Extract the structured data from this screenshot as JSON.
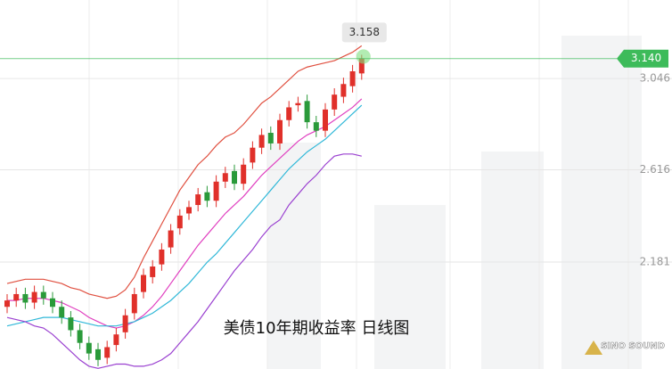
{
  "chart_data": {
    "type": "candlestick",
    "title": "美债10年期收益率  日线图",
    "logo": "SINO SOUND",
    "ylim": [
      1.677,
      3.416
    ],
    "yticks": [
      3.046,
      2.616,
      2.181
    ],
    "grid": true,
    "up_color": "#e0302a",
    "down_color": "#2a9a3a",
    "last_price": {
      "value": 3.14,
      "label": "3.140"
    },
    "last_price_color": "#3dbb5a",
    "open": [
      1.97,
      2.0,
      2.03,
      1.99,
      2.04,
      2.01,
      1.97,
      1.92,
      1.86,
      1.8,
      1.77,
      1.73,
      1.79,
      1.85,
      1.94,
      2.04,
      2.11,
      2.17,
      2.25,
      2.34,
      2.41,
      2.45,
      2.51,
      2.47,
      2.56,
      2.61,
      2.55,
      2.65,
      2.72,
      2.79,
      2.74,
      2.85,
      2.92,
      2.94,
      2.84,
      2.8,
      2.9,
      2.96,
      3.01,
      3.07
    ],
    "high": [
      2.03,
      2.06,
      2.06,
      2.07,
      2.07,
      2.04,
      2.0,
      1.95,
      1.89,
      1.83,
      1.8,
      1.81,
      1.87,
      1.96,
      2.06,
      2.15,
      2.19,
      2.27,
      2.36,
      2.43,
      2.47,
      2.53,
      2.54,
      2.59,
      2.63,
      2.64,
      2.67,
      2.75,
      2.81,
      2.82,
      2.88,
      2.94,
      2.96,
      2.97,
      2.87,
      2.93,
      3.0,
      3.05,
      3.11,
      3.158
    ],
    "low": [
      1.94,
      1.97,
      1.96,
      1.96,
      1.98,
      1.94,
      1.89,
      1.83,
      1.77,
      1.72,
      1.69,
      1.7,
      1.76,
      1.82,
      1.91,
      2.01,
      2.08,
      2.14,
      2.22,
      2.31,
      2.38,
      2.42,
      2.44,
      2.44,
      2.53,
      2.52,
      2.52,
      2.62,
      2.69,
      2.71,
      2.71,
      2.82,
      2.89,
      2.81,
      2.77,
      2.77,
      2.87,
      2.93,
      2.98,
      3.04
    ],
    "close": [
      2.0,
      2.03,
      1.99,
      2.04,
      2.01,
      1.97,
      1.92,
      1.86,
      1.8,
      1.75,
      1.72,
      1.78,
      1.84,
      1.93,
      2.03,
      2.12,
      2.16,
      2.24,
      2.33,
      2.4,
      2.44,
      2.5,
      2.47,
      2.56,
      2.6,
      2.55,
      2.64,
      2.72,
      2.78,
      2.74,
      2.85,
      2.91,
      2.93,
      2.84,
      2.8,
      2.9,
      2.97,
      3.02,
      3.08,
      3.14
    ],
    "lines": [
      {
        "color": "#e05040",
        "values": [
          2.08,
          2.09,
          2.1,
          2.1,
          2.1,
          2.09,
          2.08,
          2.06,
          2.05,
          2.03,
          2.02,
          2.01,
          2.02,
          2.05,
          2.11,
          2.2,
          2.28,
          2.36,
          2.44,
          2.52,
          2.58,
          2.64,
          2.68,
          2.73,
          2.77,
          2.79,
          2.83,
          2.88,
          2.93,
          2.96,
          3.0,
          3.04,
          3.08,
          3.1,
          3.11,
          3.12,
          3.13,
          3.15,
          3.17,
          3.2
        ]
      },
      {
        "color": "#e040c0",
        "values": [
          2.0,
          2.0,
          2.01,
          2.01,
          2.01,
          2.0,
          1.99,
          1.97,
          1.95,
          1.92,
          1.9,
          1.88,
          1.87,
          1.88,
          1.9,
          1.93,
          1.97,
          2.02,
          2.08,
          2.14,
          2.2,
          2.26,
          2.31,
          2.36,
          2.41,
          2.45,
          2.49,
          2.54,
          2.59,
          2.63,
          2.67,
          2.71,
          2.75,
          2.78,
          2.8,
          2.82,
          2.85,
          2.88,
          2.91,
          2.95
        ]
      },
      {
        "color": "#30b8d8",
        "values": [
          1.88,
          1.89,
          1.9,
          1.91,
          1.92,
          1.92,
          1.92,
          1.91,
          1.9,
          1.89,
          1.88,
          1.88,
          1.88,
          1.89,
          1.9,
          1.92,
          1.94,
          1.97,
          2.0,
          2.04,
          2.08,
          2.13,
          2.18,
          2.22,
          2.27,
          2.32,
          2.37,
          2.42,
          2.47,
          2.52,
          2.57,
          2.62,
          2.66,
          2.7,
          2.73,
          2.76,
          2.8,
          2.84,
          2.88,
          2.92
        ]
      },
      {
        "color": "#9a40d0",
        "values": [
          1.92,
          1.91,
          1.9,
          1.88,
          1.87,
          1.84,
          1.8,
          1.76,
          1.72,
          1.69,
          1.68,
          1.69,
          1.7,
          1.7,
          1.69,
          1.69,
          1.7,
          1.72,
          1.75,
          1.8,
          1.85,
          1.9,
          1.96,
          2.02,
          2.08,
          2.14,
          2.19,
          2.24,
          2.3,
          2.35,
          2.38,
          2.45,
          2.5,
          2.55,
          2.59,
          2.64,
          2.68,
          2.69,
          2.69,
          2.68
        ]
      }
    ]
  }
}
